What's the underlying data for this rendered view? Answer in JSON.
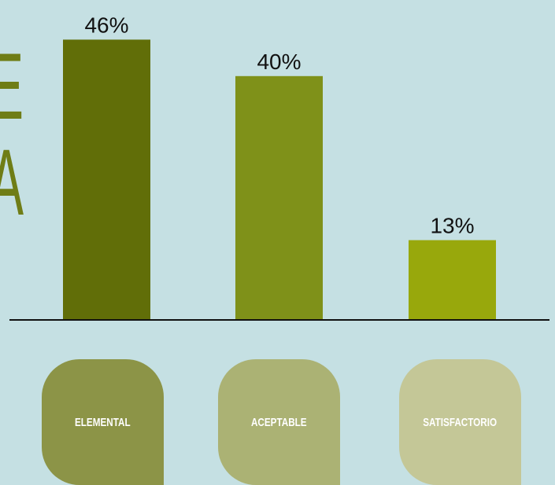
{
  "side_text": [
    "E",
    "A"
  ],
  "chart_data": {
    "type": "bar",
    "categories": [
      "Elemental",
      "Aceptable",
      "Satisfactorio"
    ],
    "values": [
      46,
      40,
      13
    ],
    "value_labels": [
      "46%",
      "40%",
      "13%"
    ],
    "ylim": [
      0,
      50
    ],
    "grid": false,
    "title": "",
    "xlabel": "",
    "ylabel": "",
    "bar_colors": [
      "#616e08",
      "#7f9119",
      "#98a80c"
    ],
    "label_colors": [
      "#8c9447",
      "#abb274",
      "#c4c797"
    ]
  }
}
